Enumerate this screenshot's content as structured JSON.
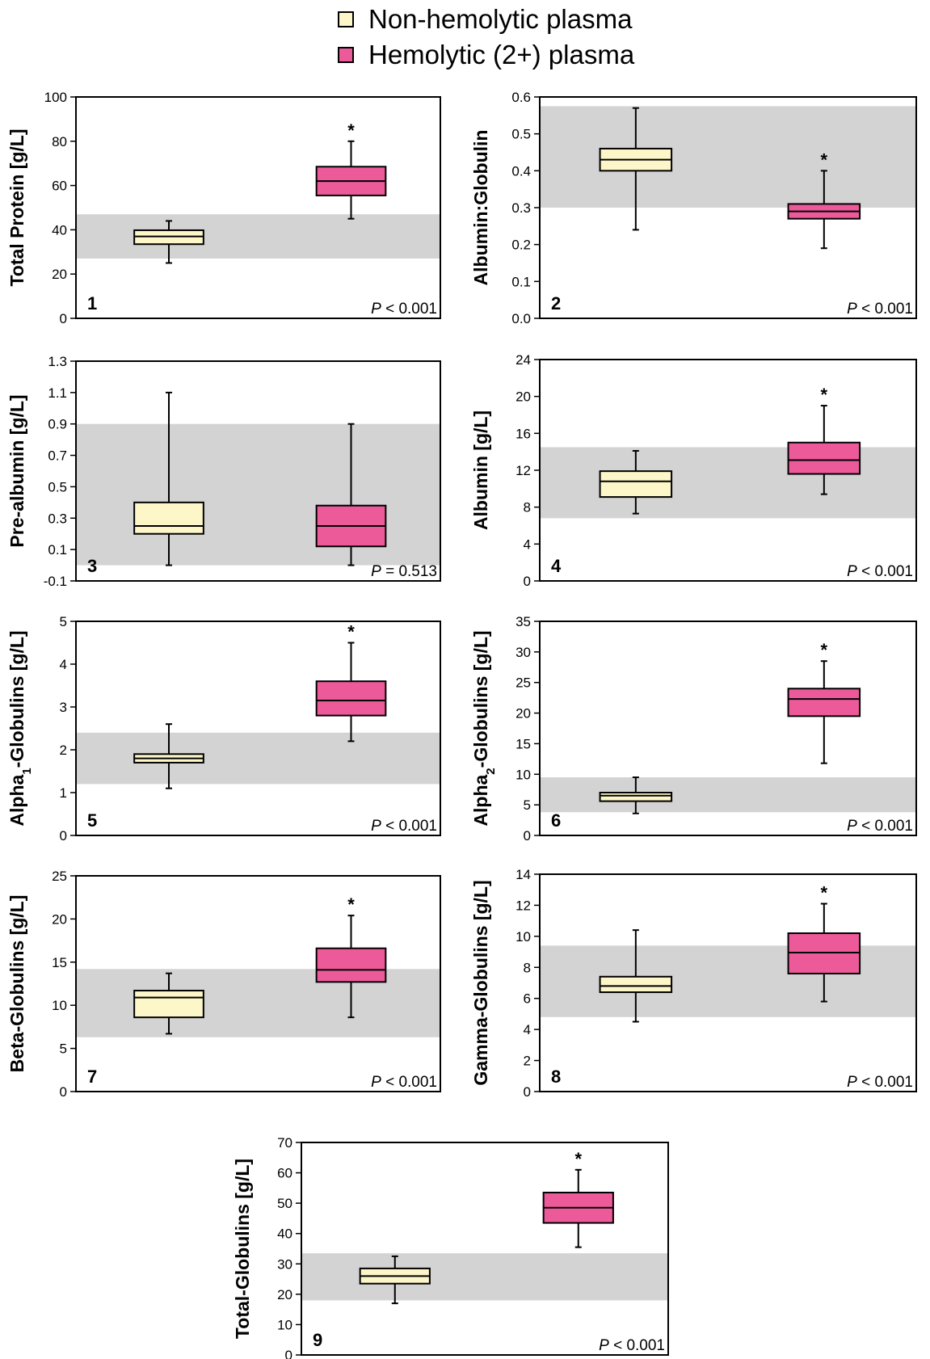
{
  "legend": [
    {
      "label": "Non-hemolytic plasma",
      "color": "#fdf6c9"
    },
    {
      "label": "Hemolytic (2+) plasma",
      "color": "#ec5a9a"
    }
  ],
  "chart_data": [
    {
      "type": "box",
      "panel": "1",
      "ylabel": "Total Protein [g/L]",
      "ylim": [
        0,
        100
      ],
      "yticks": [
        "0",
        "20",
        "40",
        "60",
        "80",
        "100"
      ],
      "ref_range": [
        27,
        47
      ],
      "p_value": "P < 0.001",
      "series": [
        {
          "name": "Non-hemolytic plasma",
          "min": 25,
          "q1": 33.5,
          "median": 37,
          "q3": 39.8,
          "max": 44,
          "star": false
        },
        {
          "name": "Hemolytic (2+) plasma",
          "min": 45,
          "q1": 55.5,
          "median": 62,
          "q3": 68.5,
          "max": 80,
          "star": true
        }
      ]
    },
    {
      "type": "box",
      "panel": "2",
      "ylabel": "Albumin:Globulin",
      "ylim": [
        0,
        0.6
      ],
      "yticks": [
        "0.0",
        "0.1",
        "0.2",
        "0.3",
        "0.4",
        "0.5",
        "0.6"
      ],
      "ref_range": [
        0.3,
        0.575
      ],
      "p_value": "P < 0.001",
      "series": [
        {
          "name": "Non-hemolytic plasma",
          "min": 0.24,
          "q1": 0.4,
          "median": 0.43,
          "q3": 0.46,
          "max": 0.57,
          "star": false
        },
        {
          "name": "Hemolytic (2+) plasma",
          "min": 0.19,
          "q1": 0.27,
          "median": 0.29,
          "q3": 0.31,
          "max": 0.4,
          "star": true
        }
      ]
    },
    {
      "type": "box",
      "panel": "3",
      "ylabel": "Pre-albumin [g/L]",
      "ylim": [
        -0.1,
        1.3
      ],
      "yticks": [
        "-0.1",
        "0.1",
        "0.3",
        "0.5",
        "0.7",
        "0.9",
        "1.1",
        "1.3"
      ],
      "ref_range": [
        0.0,
        0.9
      ],
      "p_value": "P = 0.513",
      "series": [
        {
          "name": "Non-hemolytic plasma",
          "min": 0.0,
          "q1": 0.2,
          "median": 0.25,
          "q3": 0.4,
          "max": 1.1,
          "star": false
        },
        {
          "name": "Hemolytic (2+) plasma",
          "min": 0.0,
          "q1": 0.12,
          "median": 0.25,
          "q3": 0.38,
          "max": 0.9,
          "star": false
        }
      ]
    },
    {
      "type": "box",
      "panel": "4",
      "ylabel": "Albumin [g/L]",
      "ylim": [
        0,
        24
      ],
      "yticks": [
        "0",
        "4",
        "8",
        "12",
        "16",
        "20",
        "24"
      ],
      "ref_range": [
        6.8,
        14.5
      ],
      "p_value": "P < 0.001",
      "series": [
        {
          "name": "Non-hemolytic plasma",
          "min": 7.3,
          "q1": 9.1,
          "median": 10.8,
          "q3": 11.9,
          "max": 14.1,
          "star": false
        },
        {
          "name": "Hemolytic (2+) plasma",
          "min": 9.4,
          "q1": 11.6,
          "median": 13.1,
          "q3": 15.0,
          "max": 19.0,
          "star": true
        }
      ]
    },
    {
      "type": "box",
      "panel": "5",
      "ylabel": "Alpha",
      "ylabel_sub": "1",
      "ylabel_rest": "-Globulins [g/L]",
      "ylim": [
        0,
        5
      ],
      "yticks": [
        "0",
        "1",
        "2",
        "3",
        "4",
        "5"
      ],
      "ref_range": [
        1.2,
        2.4
      ],
      "p_value": "P < 0.001",
      "series": [
        {
          "name": "Non-hemolytic plasma",
          "min": 1.1,
          "q1": 1.7,
          "median": 1.8,
          "q3": 1.9,
          "max": 2.6,
          "star": false
        },
        {
          "name": "Hemolytic (2+) plasma",
          "min": 2.2,
          "q1": 2.8,
          "median": 3.15,
          "q3": 3.6,
          "max": 4.5,
          "star": true
        }
      ]
    },
    {
      "type": "box",
      "panel": "6",
      "ylabel": "Alpha",
      "ylabel_sub": "2",
      "ylabel_rest": "-Globulins [g/L]",
      "ylim": [
        0,
        35
      ],
      "yticks": [
        "0",
        "5",
        "10",
        "15",
        "20",
        "25",
        "30",
        "35"
      ],
      "ref_range": [
        3.8,
        9.5
      ],
      "p_value": "P < 0.001",
      "series": [
        {
          "name": "Non-hemolytic plasma",
          "min": 3.6,
          "q1": 5.6,
          "median": 6.5,
          "q3": 7.0,
          "max": 9.5,
          "star": false
        },
        {
          "name": "Hemolytic (2+) plasma",
          "min": 11.8,
          "q1": 19.5,
          "median": 22.3,
          "q3": 24.0,
          "max": 28.5,
          "star": true
        }
      ]
    },
    {
      "type": "box",
      "panel": "7",
      "ylabel": "Beta-Globulins [g/L]",
      "ylim": [
        0,
        25
      ],
      "yticks": [
        "0",
        "5",
        "10",
        "15",
        "20",
        "25"
      ],
      "ref_range": [
        6.3,
        14.2
      ],
      "p_value": "P < 0.001",
      "series": [
        {
          "name": "Non-hemolytic plasma",
          "min": 6.7,
          "q1": 8.6,
          "median": 10.9,
          "q3": 11.7,
          "max": 13.7,
          "star": false
        },
        {
          "name": "Hemolytic (2+) plasma",
          "min": 8.6,
          "q1": 12.7,
          "median": 14.1,
          "q3": 16.6,
          "max": 20.4,
          "star": true
        }
      ]
    },
    {
      "type": "box",
      "panel": "8",
      "ylabel": "Gamma-Globulins [g/L]",
      "ylim": [
        0,
        14
      ],
      "yticks": [
        "0",
        "2",
        "4",
        "6",
        "8",
        "10",
        "12",
        "14"
      ],
      "ref_range": [
        4.8,
        9.4
      ],
      "p_value": "P < 0.001",
      "series": [
        {
          "name": "Non-hemolytic plasma",
          "min": 4.5,
          "q1": 6.4,
          "median": 6.8,
          "q3": 7.4,
          "max": 10.4,
          "star": false
        },
        {
          "name": "Hemolytic (2+) plasma",
          "min": 5.8,
          "q1": 7.6,
          "median": 8.95,
          "q3": 10.2,
          "max": 12.1,
          "star": true
        }
      ]
    },
    {
      "type": "box",
      "panel": "9",
      "ylabel": "Total-Globulins [g/L]",
      "ylim": [
        0,
        70
      ],
      "yticks": [
        "0",
        "10",
        "20",
        "30",
        "40",
        "50",
        "60",
        "70"
      ],
      "ref_range": [
        18,
        33.5
      ],
      "p_value": "P < 0.001",
      "series": [
        {
          "name": "Non-hemolytic plasma",
          "min": 17,
          "q1": 23.5,
          "median": 26,
          "q3": 28.5,
          "max": 32.5,
          "star": false
        },
        {
          "name": "Hemolytic (2+) plasma",
          "min": 35.5,
          "q1": 43.5,
          "median": 48.5,
          "q3": 53.5,
          "max": 61,
          "star": true
        }
      ]
    }
  ]
}
